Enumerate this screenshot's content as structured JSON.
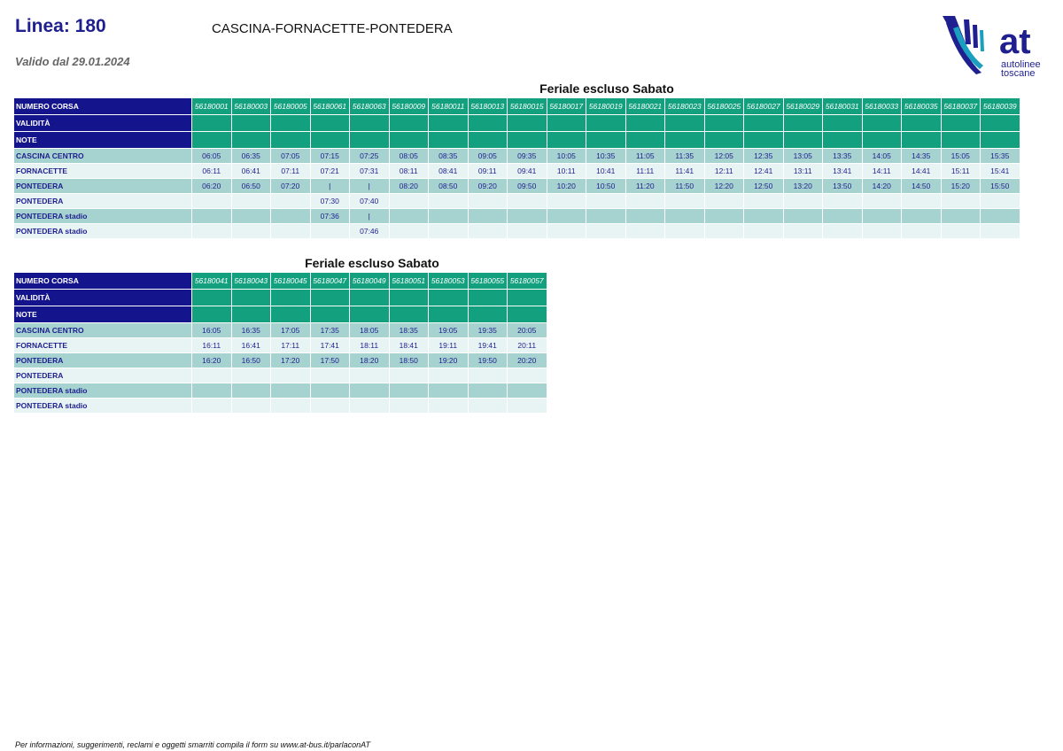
{
  "header": {
    "linea": "Linea: 180",
    "route": "CASCINA-FORNACETTE-PONTEDERA",
    "valido": "Valido dal 29.01.2024"
  },
  "logo": {
    "main": "at",
    "line1": "autolinee",
    "line2": "toscane",
    "color": "#1f1f8f"
  },
  "labels": {
    "numero": "NUMERO CORSA",
    "validita": "VALIDITÀ",
    "note": "NOTE",
    "stops": [
      "CASCINA CENTRO",
      "FORNACETTE",
      "PONTEDERA",
      "PONTEDERA",
      "PONTEDERA stadio",
      "PONTEDERA stadio"
    ]
  },
  "tables": [
    {
      "title": "Feriale escluso Sabato",
      "corse": [
        "56180001",
        "56180003",
        "56180005",
        "56180061",
        "56180063",
        "56180009",
        "56180011",
        "56180013",
        "56180015",
        "56180017",
        "56180019",
        "56180021",
        "56180023",
        "56180025",
        "56180027",
        "56180029",
        "56180031",
        "56180033",
        "56180035",
        "56180037",
        "56180039"
      ],
      "rows": [
        [
          "06:05",
          "06:35",
          "07:05",
          "07:15",
          "07:25",
          "08:05",
          "08:35",
          "09:05",
          "09:35",
          "10:05",
          "10:35",
          "11:05",
          "11:35",
          "12:05",
          "12:35",
          "13:05",
          "13:35",
          "14:05",
          "14:35",
          "15:05",
          "15:35"
        ],
        [
          "06:11",
          "06:41",
          "07:11",
          "07:21",
          "07:31",
          "08:11",
          "08:41",
          "09:11",
          "09:41",
          "10:11",
          "10:41",
          "11:11",
          "11:41",
          "12:11",
          "12:41",
          "13:11",
          "13:41",
          "14:11",
          "14:41",
          "15:11",
          "15:41"
        ],
        [
          "06:20",
          "06:50",
          "07:20",
          "|",
          "|",
          "08:20",
          "08:50",
          "09:20",
          "09:50",
          "10:20",
          "10:50",
          "11:20",
          "11:50",
          "12:20",
          "12:50",
          "13:20",
          "13:50",
          "14:20",
          "14:50",
          "15:20",
          "15:50"
        ],
        [
          "",
          "",
          "",
          "07:30",
          "07:40",
          "",
          "",
          "",
          "",
          "",
          "",
          "",
          "",
          "",
          "",
          "",
          "",
          "",
          "",
          "",
          ""
        ],
        [
          "",
          "",
          "",
          "07:36",
          "|",
          "",
          "",
          "",
          "",
          "",
          "",
          "",
          "",
          "",
          "",
          "",
          "",
          "",
          "",
          "",
          ""
        ],
        [
          "",
          "",
          "",
          "",
          "07:46",
          "",
          "",
          "",
          "",
          "",
          "",
          "",
          "",
          "",
          "",
          "",
          "",
          "",
          "",
          "",
          ""
        ]
      ]
    },
    {
      "title": "Feriale escluso Sabato",
      "corse": [
        "56180041",
        "56180043",
        "56180045",
        "56180047",
        "56180049",
        "56180051",
        "56180053",
        "56180055",
        "56180057"
      ],
      "rows": [
        [
          "16:05",
          "16:35",
          "17:05",
          "17:35",
          "18:05",
          "18:35",
          "19:05",
          "19:35",
          "20:05"
        ],
        [
          "16:11",
          "16:41",
          "17:11",
          "17:41",
          "18:11",
          "18:41",
          "19:11",
          "19:41",
          "20:11"
        ],
        [
          "16:20",
          "16:50",
          "17:20",
          "17:50",
          "18:20",
          "18:50",
          "19:20",
          "19:50",
          "20:20"
        ],
        [
          "",
          "",
          "",
          "",
          "",
          "",
          "",
          "",
          ""
        ],
        [
          "",
          "",
          "",
          "",
          "",
          "",
          "",
          "",
          ""
        ],
        [
          "",
          "",
          "",
          "",
          "",
          "",
          "",
          "",
          ""
        ]
      ]
    }
  ],
  "footer": "Per informazioni, suggerimenti, reclami e oggetti smarriti compila il form su  www.at-bus.it/parlaconAT"
}
